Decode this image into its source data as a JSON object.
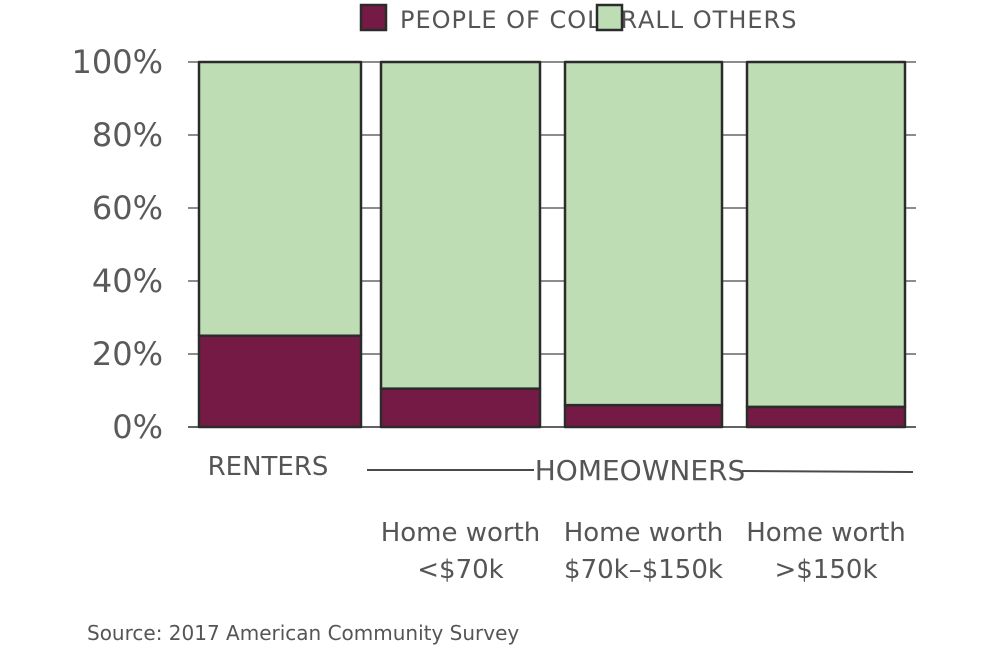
{
  "chart_data": {
    "type": "bar",
    "stacked": true,
    "categories": [
      {
        "lines": [
          "RENTERS"
        ]
      },
      {
        "lines": [
          "Home worth",
          "<$70k"
        ]
      },
      {
        "lines": [
          "Home worth",
          "$70k–$150k"
        ]
      },
      {
        "lines": [
          "Home worth",
          ">$150k"
        ]
      }
    ],
    "category_group": {
      "label": "HOMEOWNERS",
      "spans": [
        1,
        3
      ]
    },
    "series": [
      {
        "name": "PEOPLE OF COLOR",
        "color": "#741a44",
        "values": [
          25,
          10.5,
          6,
          5.5
        ]
      },
      {
        "name": "ALL OTHERS",
        "color": "#bfddb5",
        "values": [
          75,
          89.5,
          94,
          94.5
        ]
      }
    ],
    "yticks": [
      "0%",
      "20%",
      "40%",
      "60%",
      "80%",
      "100%"
    ],
    "ylim": [
      0,
      100
    ],
    "xlabel": "",
    "ylabel": "",
    "legend": "top",
    "grid": false,
    "source": "Source: 2017 American Community Survey"
  }
}
